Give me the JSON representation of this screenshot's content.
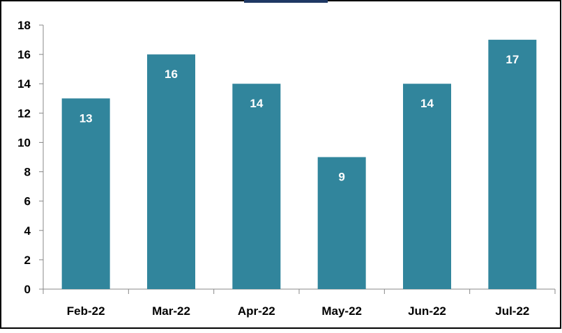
{
  "chart_data": {
    "type": "bar",
    "title": "",
    "xlabel": "",
    "ylabel": "",
    "categories": [
      "Feb-22",
      "Mar-22",
      "Apr-22",
      "May-22",
      "Jun-22",
      "Jul-22"
    ],
    "values": [
      13,
      16,
      14,
      9,
      14,
      17
    ],
    "data_labels": [
      "13",
      "16",
      "14",
      "9",
      "14",
      "17"
    ],
    "ylim": [
      0,
      18
    ],
    "yticks": [
      0,
      2,
      4,
      6,
      8,
      10,
      12,
      14,
      16,
      18
    ],
    "ytick_labels": [
      "0",
      "2",
      "4",
      "6",
      "8",
      "10",
      "12",
      "14",
      "16",
      "18"
    ],
    "grid": false,
    "legend": "none",
    "bar_color": "#31859c",
    "label_color": "#ffffff",
    "border_color": "#000000",
    "title_color": "#1f3864"
  }
}
